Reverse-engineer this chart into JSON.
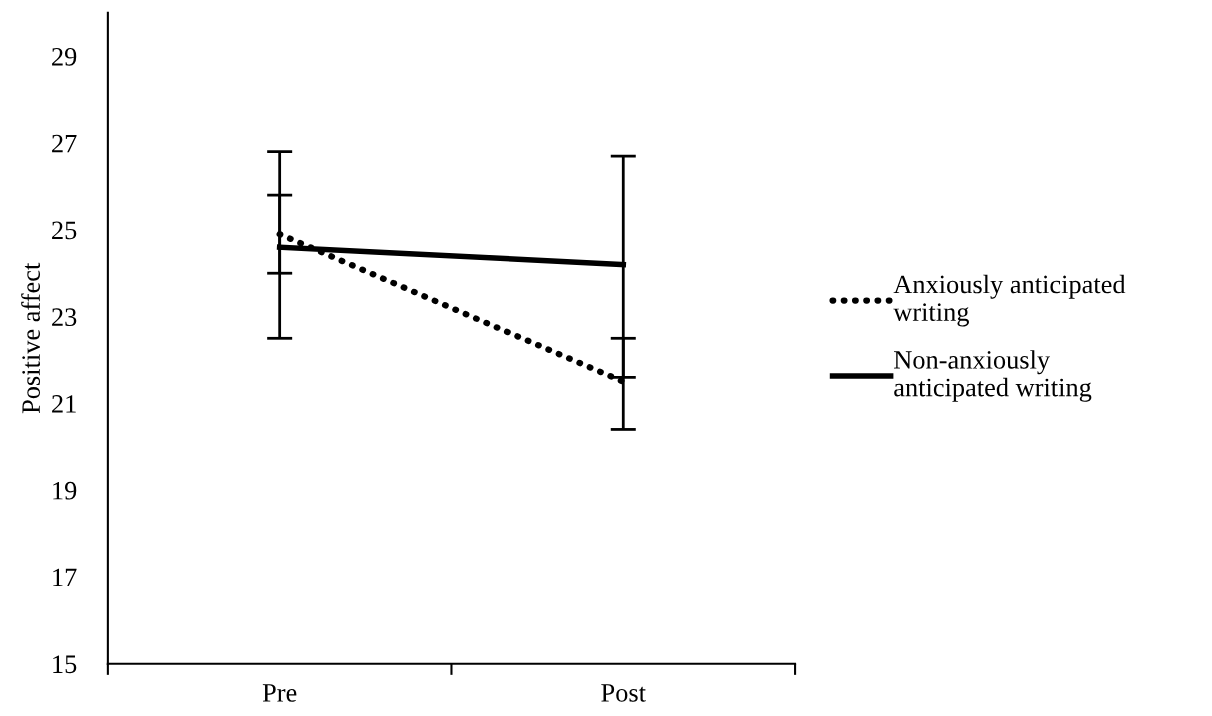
{
  "chart_data": {
    "type": "line",
    "ylabel": "Positive affect",
    "categories": [
      "Pre",
      "Post"
    ],
    "series": [
      {
        "name": "Anxiously anticipated writing",
        "color": "#000000",
        "line_style": "dotted",
        "values": [
          24.9,
          21.5
        ],
        "errors": [
          [
            24.0,
            25.8
          ],
          [
            20.4,
            22.5
          ]
        ]
      },
      {
        "name": "Non-anxiously anticipated writing",
        "color": "#000000",
        "line_style": "solid",
        "values": [
          24.6,
          24.2
        ],
        "errors": [
          [
            22.5,
            26.8
          ],
          [
            21.6,
            26.7
          ]
        ]
      }
    ],
    "ylim": [
      15,
      30
    ],
    "yticks": [
      15,
      17,
      19,
      21,
      23,
      25,
      27,
      29
    ],
    "grid": false,
    "legend": "right",
    "marker": "none"
  }
}
